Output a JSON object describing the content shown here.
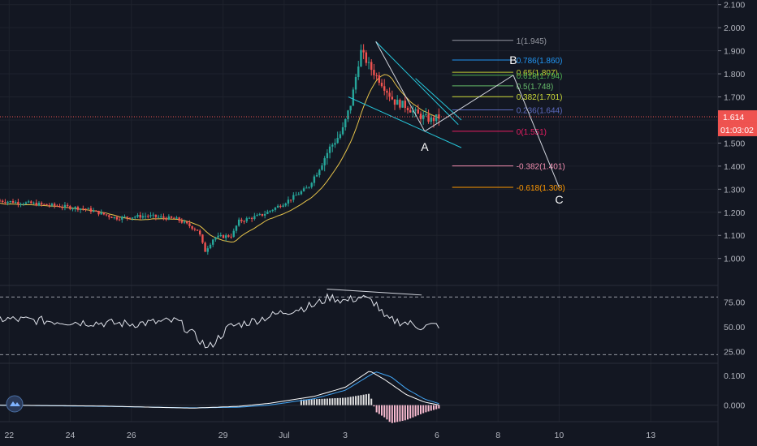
{
  "chart_data": {
    "type": "candlestick",
    "price_axis": {
      "ticks": [
        "1.000",
        "1.100",
        "1.200",
        "1.300",
        "1.400",
        "1.500",
        "1.600",
        "1.700",
        "1.800",
        "1.900",
        "2.000",
        "2.100"
      ],
      "tick_values": [
        1.0,
        1.1,
        1.2,
        1.3,
        1.4,
        1.5,
        1.6,
        1.7,
        1.8,
        1.9,
        2.0,
        2.1
      ],
      "range": [
        0.89,
        2.12
      ]
    },
    "last_price": {
      "label": "1.614",
      "value": 1.614,
      "countdown": "01:03:02",
      "color": "#ef5350"
    },
    "time_axis": {
      "ticks": [
        "22",
        "24",
        "26",
        "29",
        "Jul",
        "3",
        "6",
        "8",
        "10",
        "13"
      ],
      "tick_days": [
        0,
        2,
        4,
        7,
        9,
        11,
        14,
        16,
        18,
        21
      ],
      "range_days": [
        -0.3,
        23.2
      ]
    },
    "fibonacci": [
      {
        "label": "1(1.945)",
        "value": 1.945,
        "color": "#9598a1"
      },
      {
        "label": "0.786(1.860)",
        "value": 1.86,
        "color": "#2196f3"
      },
      {
        "label": "0.65(1.807)",
        "value": 1.807,
        "color": "#c0ca33"
      },
      {
        "label": "0.618(1.794)",
        "value": 1.794,
        "color": "#4caf50"
      },
      {
        "label": "0.5(1.748)",
        "value": 1.748,
        "color": "#66bb6a"
      },
      {
        "label": "0.382(1.701)",
        "value": 1.701,
        "color": "#cddc39"
      },
      {
        "label": "0.236(1.644)",
        "value": 1.644,
        "color": "#5c6bc0"
      },
      {
        "label": "0(1.551)",
        "value": 1.551,
        "color": "#e91e63"
      },
      {
        "label": "-0.382(1.401)",
        "value": 1.401,
        "color": "#f48fb1"
      },
      {
        "label": "-0.618(1.308)",
        "value": 1.308,
        "color": "#ff9800"
      }
    ],
    "projection_points": [
      {
        "label": "A",
        "day": 13.6,
        "value": 1.551
      },
      {
        "label": "B",
        "day": 16.5,
        "value": 1.794
      },
      {
        "label": "C",
        "day": 18.0,
        "value": 1.308
      }
    ],
    "moving_average": {
      "color": "#e6c34a"
    },
    "rsi": {
      "ticks": [
        "25.00",
        "50.00",
        "75.00"
      ],
      "tick_values": [
        25,
        50,
        75
      ],
      "bands": [
        22,
        80
      ],
      "range": [
        15,
        90
      ]
    },
    "macd": {
      "ticks": [
        "0.000",
        "0.100"
      ],
      "tick_values": [
        0,
        0.1
      ],
      "range": [
        -0.05,
        0.135
      ]
    },
    "colors": {
      "up": "#26a69a",
      "down": "#ef5350",
      "wedge": "#26c6da",
      "drawing": "#d1d4dc",
      "macd_line": "#ffffff",
      "signal_line": "#42a5f5"
    }
  },
  "icons": {
    "logo": "tradingview-logo-icon"
  }
}
